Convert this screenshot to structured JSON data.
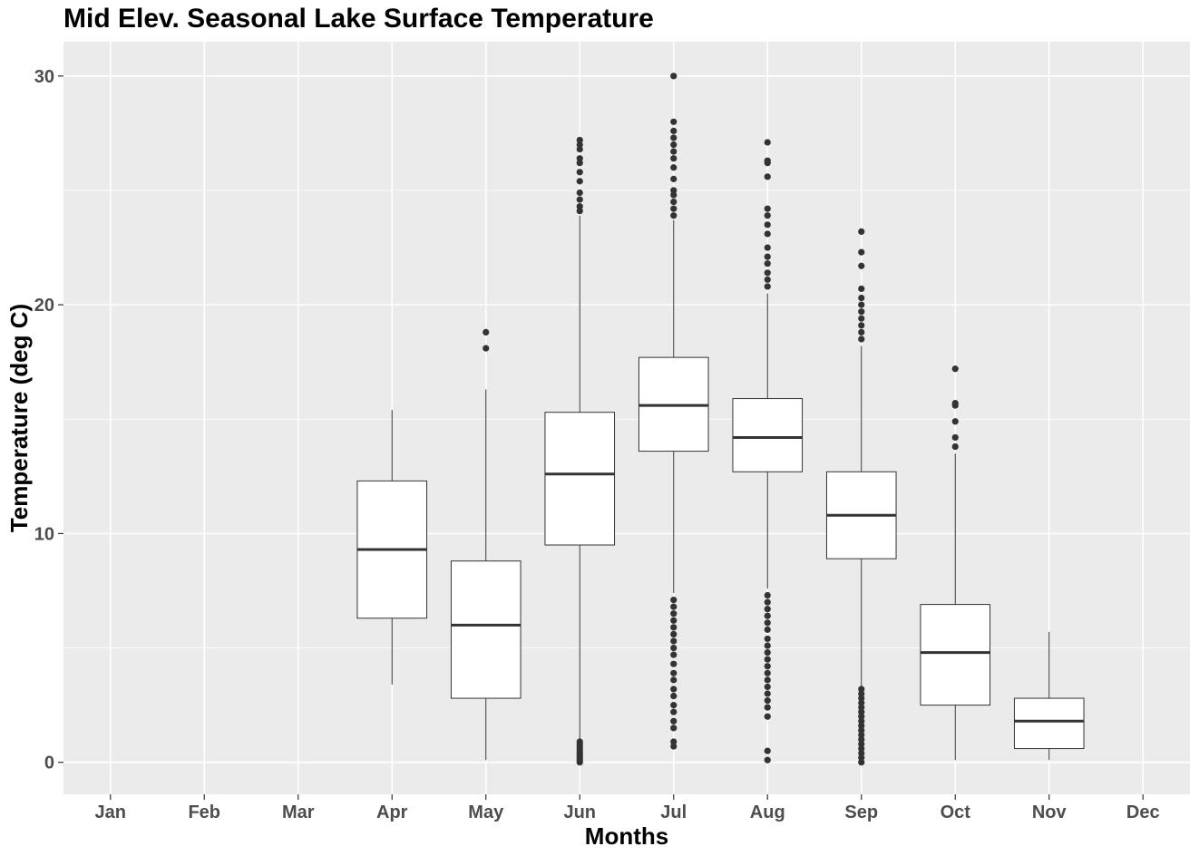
{
  "chart_data": {
    "type": "box",
    "title": "Mid Elev. Seasonal Lake Surface Temperature",
    "xlabel": "Months",
    "ylabel": "Temperature (deg C)",
    "ylim": [
      -1.4,
      31.5
    ],
    "yticks": [
      0,
      10,
      20,
      30
    ],
    "categories": [
      "Jan",
      "Feb",
      "Mar",
      "Apr",
      "May",
      "Jun",
      "Jul",
      "Aug",
      "Sep",
      "Oct",
      "Nov",
      "Dec"
    ],
    "boxes": [
      {
        "month": "Jan",
        "stats": null
      },
      {
        "month": "Feb",
        "stats": null
      },
      {
        "month": "Mar",
        "stats": null
      },
      {
        "month": "Apr",
        "stats": {
          "whisker_low": 3.4,
          "q1": 6.3,
          "median": 9.3,
          "q3": 12.3,
          "whisker_high": 15.4
        },
        "outliers": []
      },
      {
        "month": "May",
        "stats": {
          "whisker_low": 0.1,
          "q1": 2.8,
          "median": 6.0,
          "q3": 8.8,
          "whisker_high": 16.3
        },
        "outliers": [
          18.1,
          18.8
        ]
      },
      {
        "month": "Jun",
        "stats": {
          "whisker_low": 1.0,
          "q1": 9.5,
          "median": 12.6,
          "q3": 15.3,
          "whisker_high": 23.9
        },
        "outliers": [
          0.0,
          0.1,
          0.2,
          0.3,
          0.4,
          0.5,
          0.6,
          0.7,
          0.8,
          0.9,
          24.1,
          24.3,
          24.6,
          24.9,
          25.4,
          25.8,
          26.2,
          26.4,
          26.8,
          27.0,
          27.2
        ]
      },
      {
        "month": "Jul",
        "stats": {
          "whisker_low": 7.4,
          "q1": 13.6,
          "median": 15.6,
          "q3": 17.7,
          "whisker_high": 23.7
        },
        "outliers": [
          0.7,
          0.9,
          1.5,
          1.8,
          2.2,
          2.5,
          2.9,
          3.2,
          3.6,
          3.9,
          4.3,
          4.7,
          5.0,
          5.3,
          5.6,
          5.9,
          6.2,
          6.5,
          6.8,
          7.1,
          23.9,
          24.2,
          24.5,
          24.8,
          25.0,
          25.5,
          26.0,
          26.4,
          26.7,
          27.0,
          27.3,
          27.6,
          28.0,
          30.0
        ]
      },
      {
        "month": "Aug",
        "stats": {
          "whisker_low": 7.6,
          "q1": 12.7,
          "median": 14.2,
          "q3": 15.9,
          "whisker_high": 20.5
        },
        "outliers": [
          0.1,
          0.5,
          2.0,
          2.4,
          2.7,
          3.0,
          3.3,
          3.6,
          3.9,
          4.2,
          4.5,
          4.8,
          5.1,
          5.4,
          5.8,
          6.1,
          6.4,
          6.7,
          7.0,
          7.3,
          20.8,
          21.1,
          21.4,
          21.8,
          22.1,
          22.5,
          23.1,
          23.5,
          23.9,
          24.2,
          25.6,
          26.2,
          26.3,
          27.1
        ]
      },
      {
        "month": "Sep",
        "stats": {
          "whisker_low": 3.3,
          "q1": 8.9,
          "median": 10.8,
          "q3": 12.7,
          "whisker_high": 18.2
        },
        "outliers": [
          0.0,
          0.2,
          0.4,
          0.6,
          0.8,
          1.0,
          1.2,
          1.4,
          1.6,
          1.8,
          2.0,
          2.2,
          2.4,
          2.6,
          2.8,
          3.0,
          3.2,
          18.5,
          18.8,
          19.1,
          19.4,
          19.7,
          20.0,
          20.3,
          20.7,
          21.7,
          22.3,
          23.2
        ]
      },
      {
        "month": "Oct",
        "stats": {
          "whisker_low": 0.1,
          "q1": 2.5,
          "median": 4.8,
          "q3": 6.9,
          "whisker_high": 13.5
        },
        "outliers": [
          13.8,
          14.2,
          14.9,
          15.6,
          15.7,
          17.2
        ]
      },
      {
        "month": "Nov",
        "stats": {
          "whisker_low": 0.1,
          "q1": 0.6,
          "median": 1.8,
          "q3": 2.8,
          "whisker_high": 5.7
        },
        "outliers": []
      },
      {
        "month": "Dec",
        "stats": null
      }
    ],
    "grid": true,
    "legend": "none"
  }
}
